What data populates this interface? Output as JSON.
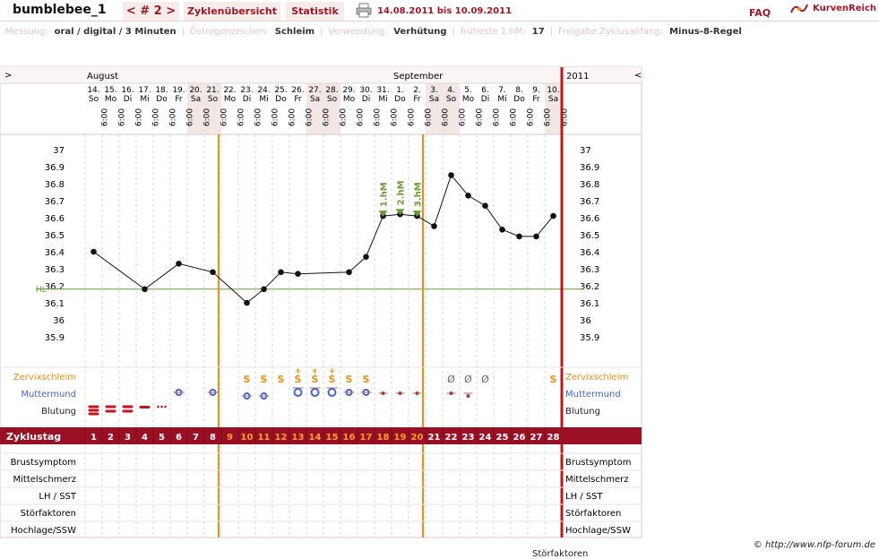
{
  "title": "bumblebee_1",
  "nav_label": "< # 2 >",
  "tabs": [
    "Zyklenübersicht",
    "Statistik"
  ],
  "date_range": "14.08.2011 bis 10.09.2011",
  "faq": "FAQ",
  "brand": "KurvenReich",
  "meta": [
    {
      "label": "Messung:",
      "value": "oral / digital / 3 Minuten"
    },
    {
      "label": "Östrogenzeichen:",
      "value": "Schleim"
    },
    {
      "label": "Verwendung:",
      "value": "Verhütung"
    },
    {
      "label": "früheste 1.hM:",
      "value": "17"
    },
    {
      "label": "Freigabe Zyklusanfang:",
      "value": "Minus-8-Regel"
    }
  ],
  "chart": {
    "left_arrow": ">",
    "right_arrow": "<",
    "year": "2011",
    "month_labels": [
      {
        "text": "August",
        "day_index": 0
      },
      {
        "text": "September",
        "day_index": 18
      }
    ],
    "hl_label": "HL",
    "time": "6:00",
    "days": [
      {
        "num": "14.",
        "dow": "So",
        "weekend": false
      },
      {
        "num": "15.",
        "dow": "Mo",
        "weekend": false
      },
      {
        "num": "16.",
        "dow": "Di",
        "weekend": false
      },
      {
        "num": "17.",
        "dow": "Mi",
        "weekend": false
      },
      {
        "num": "18.",
        "dow": "Do",
        "weekend": false
      },
      {
        "num": "19.",
        "dow": "Fr",
        "weekend": false
      },
      {
        "num": "20.",
        "dow": "Sa",
        "weekend": true
      },
      {
        "num": "21.",
        "dow": "So",
        "weekend": true
      },
      {
        "num": "22.",
        "dow": "Mo",
        "weekend": false
      },
      {
        "num": "23.",
        "dow": "Di",
        "weekend": false
      },
      {
        "num": "24.",
        "dow": "Mi",
        "weekend": false
      },
      {
        "num": "25.",
        "dow": "Do",
        "weekend": false
      },
      {
        "num": "26.",
        "dow": "Fr",
        "weekend": false
      },
      {
        "num": "27.",
        "dow": "Sa",
        "weekend": true
      },
      {
        "num": "28.",
        "dow": "So",
        "weekend": true
      },
      {
        "num": "29.",
        "dow": "Mo",
        "weekend": false
      },
      {
        "num": "30.",
        "dow": "Di",
        "weekend": false
      },
      {
        "num": "31.",
        "dow": "Mi",
        "weekend": false
      },
      {
        "num": "1.",
        "dow": "Do",
        "weekend": false
      },
      {
        "num": "2.",
        "dow": "Fr",
        "weekend": false
      },
      {
        "num": "3.",
        "dow": "Sa",
        "weekend": true
      },
      {
        "num": "4.",
        "dow": "So",
        "weekend": true
      },
      {
        "num": "5.",
        "dow": "Mo",
        "weekend": false
      },
      {
        "num": "6.",
        "dow": "Di",
        "weekend": false
      },
      {
        "num": "7.",
        "dow": "Mi",
        "weekend": false
      },
      {
        "num": "8.",
        "dow": "Do",
        "weekend": false
      },
      {
        "num": "9.",
        "dow": "Fr",
        "weekend": false
      },
      {
        "num": "10.",
        "dow": "Sa",
        "weekend": true
      }
    ],
    "y_ticks": [
      "37",
      "36.9",
      "36.8",
      "36.7",
      "36.6",
      "36.5",
      "36.4",
      "36.3",
      "36.2",
      "36.1",
      "36",
      "35.9"
    ],
    "hl_value": 36.18,
    "temps": [
      36.4,
      null,
      null,
      36.18,
      null,
      36.33,
      null,
      36.28,
      null,
      36.1,
      36.18,
      36.28,
      36.27,
      null,
      null,
      36.28,
      36.37,
      36.61,
      36.62,
      36.61,
      36.55,
      36.85,
      36.73,
      36.67,
      36.53,
      36.49,
      36.49,
      36.61
    ],
    "hm_labels": [
      {
        "text": "1.hM",
        "day_index": 17
      },
      {
        "text": "2.hM",
        "day_index": 18
      },
      {
        "text": "3.hM",
        "day_index": 19
      }
    ],
    "ovulation_lines_day": [
      8,
      20
    ],
    "zervix_label": "Zervixschleim",
    "zervix": [
      "",
      "",
      "",
      "",
      "",
      "",
      "",
      "",
      "",
      "S",
      "S",
      "S",
      "S+",
      "S+",
      "S+",
      "S",
      "S",
      "",
      "",
      "",
      "",
      "Ø",
      "Ø",
      "Ø",
      "",
      "",
      "",
      "S"
    ],
    "mumu_label": "Muttermund",
    "mumu": [
      "",
      "",
      "",
      "",
      "",
      "o",
      "",
      "o",
      "",
      "o",
      "o",
      "",
      "O",
      "O",
      "O",
      "o",
      "o",
      "-",
      "-",
      "-",
      "",
      "-",
      "-",
      "",
      "",
      "",
      "",
      ""
    ],
    "blutung_label": "Blutung",
    "blutung": [
      "heavy",
      "strong",
      "strong",
      "medium",
      "spotting",
      "",
      "",
      "",
      "",
      "",
      "",
      "",
      "",
      "",
      "",
      "",
      "",
      "",
      "",
      "",
      "",
      "",
      "",
      "",
      "",
      "",
      "",
      ""
    ],
    "zyklustag_label": "Zyklustag",
    "cycle_days": [
      "1",
      "2",
      "3",
      "4",
      "5",
      "6",
      "7",
      "8",
      "9",
      "10",
      "11",
      "12",
      "13",
      "14",
      "15",
      "16",
      "17",
      "18",
      "19",
      "20",
      "21",
      "22",
      "23",
      "24",
      "25",
      "26",
      "27",
      "28"
    ],
    "extra_rows": [
      "Brustsymptom",
      "Mittelschmerz",
      "LH / SST",
      "Störfaktoren",
      "Hochlage/SSW"
    ]
  },
  "copyright": "© http://www.nfp-forum.de",
  "footer_text": "Störfaktoren",
  "colors": {
    "accent": "#a01826",
    "orange": "#f28c16",
    "blue": "#4466cc",
    "point": "#111111",
    "weekend": "#f2e6e6",
    "hl": "#6b9a3c"
  }
}
